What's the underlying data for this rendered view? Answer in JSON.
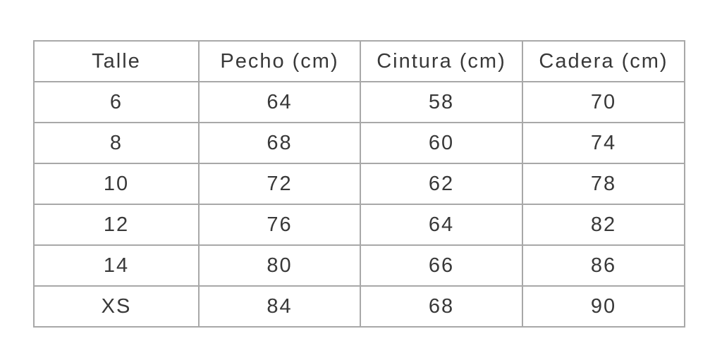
{
  "chart_data": {
    "type": "table",
    "title": "",
    "columns": [
      "Talle",
      "Pecho (cm)",
      "Cintura (cm)",
      "Cadera (cm)"
    ],
    "rows": [
      [
        "6",
        "64",
        "58",
        "70"
      ],
      [
        "8",
        "68",
        "60",
        "74"
      ],
      [
        "10",
        "72",
        "62",
        "78"
      ],
      [
        "12",
        "76",
        "64",
        "82"
      ],
      [
        "14",
        "80",
        "66",
        "86"
      ],
      [
        "XS",
        "84",
        "68",
        "90"
      ]
    ]
  },
  "colors": {
    "border": "#a8a8a8",
    "text": "#383838",
    "background": "#ffffff"
  }
}
